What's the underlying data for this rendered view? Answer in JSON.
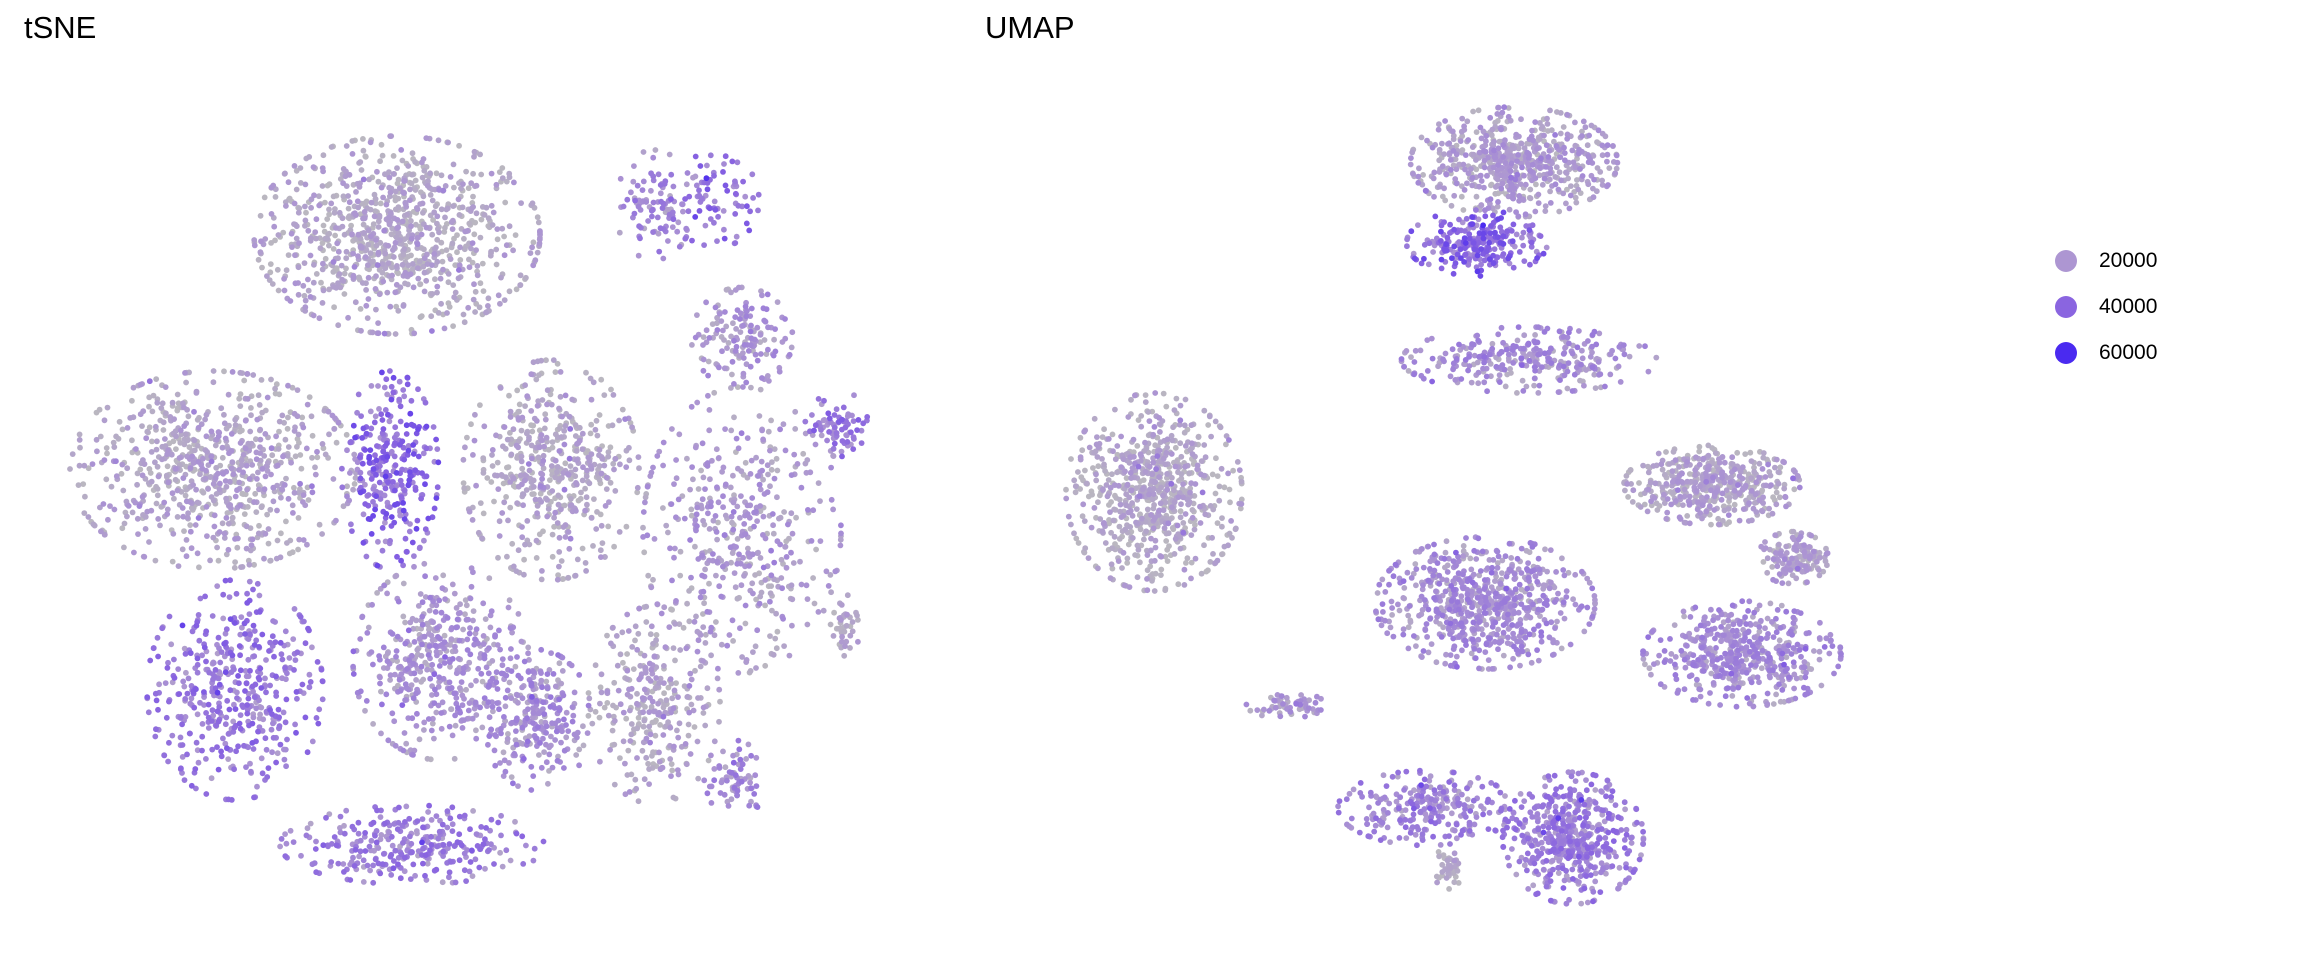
{
  "chart_data": [
    {
      "type": "scatter",
      "title": "tSNE",
      "xlim": [
        -42,
        42
      ],
      "ylim": [
        -42,
        42
      ],
      "grid": false,
      "clusters": [
        {
          "x": -8.3,
          "y": 26.5,
          "sx": 6.5,
          "sy": 4.5,
          "n": 900,
          "value": 14000
        },
        {
          "x": -26.7,
          "y": 3.0,
          "sx": 6.5,
          "sy": 4.5,
          "n": 750,
          "value": 15000
        },
        {
          "x": -9.0,
          "y": 3.0,
          "sx": 2.2,
          "sy": 4.5,
          "n": 300,
          "value": 35000
        },
        {
          "x": 7.1,
          "y": 3.0,
          "sx": 4.0,
          "sy": 5.0,
          "n": 500,
          "value": 14000
        },
        {
          "x": -24.5,
          "y": -19.0,
          "sx": 4.0,
          "sy": 5.0,
          "n": 450,
          "value": 30000
        },
        {
          "x": -3.9,
          "y": -16.1,
          "sx": 4.0,
          "sy": 4.5,
          "n": 450,
          "value": 20000
        },
        {
          "x": 5.7,
          "y": -22.0,
          "sx": 2.5,
          "sy": 3.2,
          "n": 250,
          "value": 22000
        },
        {
          "x": 17.4,
          "y": -20.5,
          "sx": 3.0,
          "sy": 4.5,
          "n": 300,
          "value": 15000
        },
        {
          "x": 26.2,
          "y": -3.0,
          "sx": 4.5,
          "sy": 6.5,
          "n": 450,
          "value": 18000
        },
        {
          "x": 26.2,
          "y": 16.2,
          "sx": 2.3,
          "sy": 2.3,
          "n": 150,
          "value": 20000
        },
        {
          "x": 17.4,
          "y": 29.5,
          "sx": 1.8,
          "sy": 2.5,
          "n": 90,
          "value": 24000
        },
        {
          "x": 23.5,
          "y": 30.0,
          "sx": 2.0,
          "sy": 2.2,
          "n": 80,
          "value": 32000
        },
        {
          "x": 35.8,
          "y": 7.4,
          "sx": 1.5,
          "sy": 1.6,
          "n": 80,
          "value": 30000
        },
        {
          "x": -6.8,
          "y": -34.5,
          "sx": 6.0,
          "sy": 1.8,
          "n": 300,
          "value": 28000
        },
        {
          "x": 25.5,
          "y": -28.0,
          "sx": 1.4,
          "sy": 1.8,
          "n": 70,
          "value": 24000
        },
        {
          "x": 36.5,
          "y": -12.5,
          "sx": 0.7,
          "sy": 1.4,
          "n": 40,
          "value": 14000
        }
      ]
    },
    {
      "type": "scatter",
      "title": "UMAP",
      "xlim": [
        -42,
        42
      ],
      "ylim": [
        -42,
        42
      ],
      "grid": false,
      "clusters": [
        {
          "x": 3.4,
          "y": 33.8,
          "sx": 4.7,
          "sy": 2.5,
          "n": 600,
          "value": 17000
        },
        {
          "x": -0.3,
          "y": 25.7,
          "sx": 3.2,
          "sy": 1.5,
          "n": 250,
          "value": 35000
        },
        {
          "x": 4.9,
          "y": 14.0,
          "sx": 5.8,
          "sy": 1.5,
          "n": 300,
          "value": 22000
        },
        {
          "x": -32.6,
          "y": 0.8,
          "sx": 4.0,
          "sy": 4.5,
          "n": 700,
          "value": 14000
        },
        {
          "x": 23.2,
          "y": 1.5,
          "sx": 4.0,
          "sy": 1.8,
          "n": 450,
          "value": 15000
        },
        {
          "x": 31.3,
          "y": -5.8,
          "sx": 1.6,
          "sy": 1.2,
          "n": 150,
          "value": 16000
        },
        {
          "x": 0.5,
          "y": -10.3,
          "sx": 5.0,
          "sy": 3.0,
          "n": 700,
          "value": 22000
        },
        {
          "x": 26.2,
          "y": -15.4,
          "sx": 4.5,
          "sy": 2.4,
          "n": 500,
          "value": 22000
        },
        {
          "x": 9.3,
          "y": -33.8,
          "sx": 3.2,
          "sy": 3.0,
          "n": 500,
          "value": 28000
        },
        {
          "x": -5.4,
          "y": -30.8,
          "sx": 4.0,
          "sy": 1.7,
          "n": 250,
          "value": 26000
        },
        {
          "x": -19.4,
          "y": -20.5,
          "sx": 1.8,
          "sy": 0.6,
          "n": 60,
          "value": 18000
        },
        {
          "x": -3.2,
          "y": -36.7,
          "sx": 0.7,
          "sy": 1.0,
          "n": 40,
          "value": 14000
        }
      ]
    }
  ],
  "legend": {
    "items": [
      {
        "label": "20000",
        "value": 20000,
        "color": "#ad96d2"
      },
      {
        "label": "40000",
        "value": 40000,
        "color": "#8a65e0"
      },
      {
        "label": "60000",
        "value": 60000,
        "color": "#4a2af0"
      }
    ],
    "low_color": "#bab7c0"
  }
}
